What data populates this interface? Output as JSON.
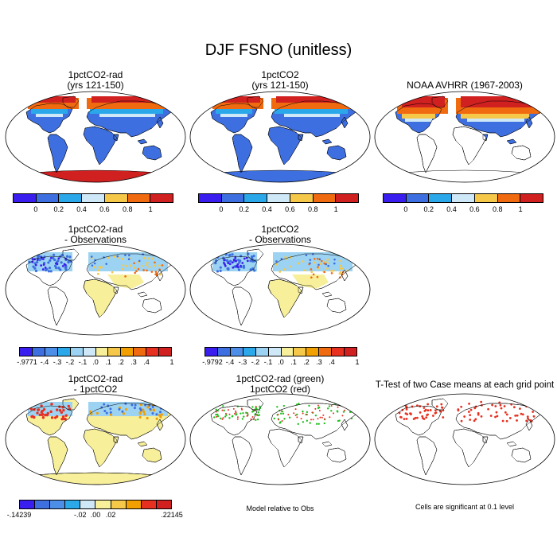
{
  "figure": {
    "title": "DJF FSNO (unitless)"
  },
  "palette": {
    "purple": "#3a1ef0",
    "blue": "#3e6fe0",
    "mid_blue": "#4d8fe8",
    "cyan": "#2aa8ea",
    "light_blue": "#9dd3f2",
    "pale_blue": "#cfe8f8",
    "pale_yellow": "#f7ef9a",
    "yellow": "#f5c84a",
    "orange": "#f2a000",
    "dark_orange": "#f06a10",
    "red": "#e83020",
    "dark_red": "#d02020",
    "green": "#20c020",
    "land_line": "#000000"
  },
  "panels": {
    "p1": {
      "title1": "1pctCO2-rad",
      "title2": "(yrs 121-150)"
    },
    "p2": {
      "title1": "1pctCO2",
      "title2": "(yrs 121-150)"
    },
    "p3": {
      "title1": "NOAA AVHRR (1967-2003)"
    },
    "p4": {
      "title1": "1pctCO2-rad",
      "title2": "- Observations"
    },
    "p5": {
      "title1": "1pctCO2",
      "title2": "- Observations"
    },
    "p7": {
      "title1": "1pctCO2-rad",
      "title2": "- 1pctCO2"
    },
    "p8": {
      "title1": "1pctCO2-rad (green)",
      "title2": "1pctCO2 (red)"
    },
    "p9": {
      "title1": "T-Test of two Case means at each grid point"
    }
  },
  "colorbars": {
    "abs": {
      "colors": [
        "#3a1ef0",
        "#3e6fe0",
        "#2aa8ea",
        "#cfe8f8",
        "#f5c84a",
        "#f06a10",
        "#d02020"
      ],
      "ticks": [
        "0",
        "0.2",
        "0.4",
        "0.6",
        "0.8",
        "1"
      ]
    },
    "diff1": {
      "colors": [
        "#3a1ef0",
        "#3e6fe0",
        "#4d8fe8",
        "#2aa8ea",
        "#9dd3f2",
        "#cfe8f8",
        "#f7ef9a",
        "#f5c84a",
        "#f2a000",
        "#f06a10",
        "#e83020",
        "#d02020"
      ],
      "ticks": [
        "-.9771",
        "-.4",
        "-.3",
        "-.2",
        "-.1",
        ".0",
        ".1",
        ".2",
        ".3",
        ".4",
        "1"
      ]
    },
    "diff2": {
      "colors": [
        "#3a1ef0",
        "#3e6fe0",
        "#4d8fe8",
        "#2aa8ea",
        "#9dd3f2",
        "#cfe8f8",
        "#f7ef9a",
        "#f5c84a",
        "#f2a000",
        "#f06a10",
        "#e83020",
        "#d02020"
      ],
      "ticks": [
        "-.9792",
        "-.4",
        "-.3",
        "-.2",
        "-.1",
        ".0",
        ".1",
        ".2",
        ".3",
        ".4",
        "1"
      ]
    },
    "diff3": {
      "colors": [
        "#3a1ef0",
        "#3e6fe0",
        "#4d8fe8",
        "#2aa8ea",
        "#cfe8f8",
        "#f7ef9a",
        "#f5c84a",
        "#f2a000",
        "#e83020",
        "#d02020"
      ],
      "ticks": [
        "-.14239",
        "-.02",
        ".00",
        ".02",
        ".22145"
      ]
    }
  },
  "notes": {
    "model_relative": "Model relative to Obs",
    "significance": "Cells are significant at 0.1 level"
  }
}
